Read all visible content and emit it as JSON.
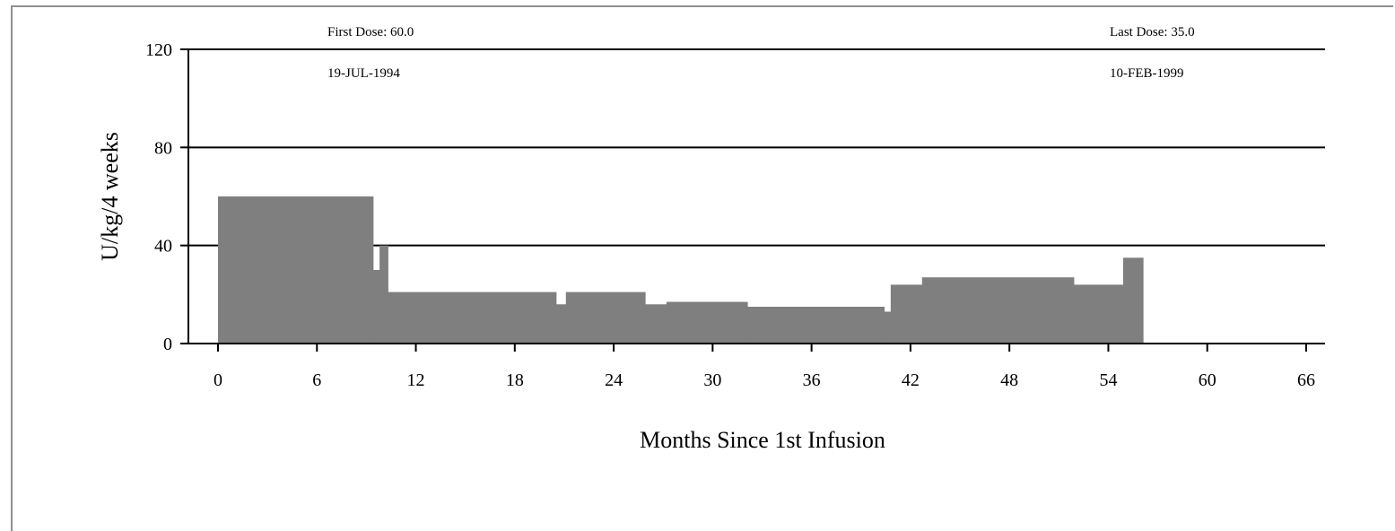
{
  "chart_data": {
    "type": "area",
    "xlabel": "Months Since 1st Infusion",
    "ylabel": "U/kg/4 weeks",
    "xlim": [
      0,
      66
    ],
    "ylim": [
      0,
      120
    ],
    "xticks": [
      "0",
      "6",
      "12",
      "18",
      "24",
      "30",
      "36",
      "42",
      "48",
      "54",
      "60",
      "66"
    ],
    "yticks": [
      "0",
      "40",
      "80",
      "120"
    ],
    "grid": "horizontal",
    "fill_color": "#7f7f7f",
    "annotations": {
      "first_dose_label": "First Dose: 60.0",
      "first_dose_date": "19-JUL-1994",
      "last_dose_label": "Last Dose: 35.0",
      "last_dose_date": "10-FEB-1999"
    },
    "steps": [
      {
        "x0": 0,
        "x1": 9.4,
        "y": 60
      },
      {
        "x0": 9.4,
        "x1": 9.8,
        "y": 30
      },
      {
        "x0": 9.8,
        "x1": 10.3,
        "y": 40
      },
      {
        "x0": 10.3,
        "x1": 20.5,
        "y": 21
      },
      {
        "x0": 20.5,
        "x1": 21.1,
        "y": 16
      },
      {
        "x0": 21.1,
        "x1": 25.9,
        "y": 21
      },
      {
        "x0": 25.9,
        "x1": 27.2,
        "y": 16
      },
      {
        "x0": 27.2,
        "x1": 32.1,
        "y": 17
      },
      {
        "x0": 32.1,
        "x1": 40.4,
        "y": 15
      },
      {
        "x0": 40.4,
        "x1": 40.8,
        "y": 13
      },
      {
        "x0": 40.8,
        "x1": 42.7,
        "y": 24
      },
      {
        "x0": 42.7,
        "x1": 51.9,
        "y": 27
      },
      {
        "x0": 51.9,
        "x1": 54.9,
        "y": 24
      },
      {
        "x0": 54.9,
        "x1": 56.1,
        "y": 35
      }
    ]
  }
}
